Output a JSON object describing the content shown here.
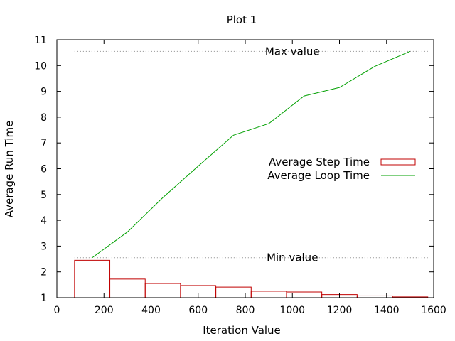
{
  "chart_data": {
    "type": "bar",
    "title": "Plot 1",
    "xlabel": "Iteration Value",
    "ylabel": "Average Run Time",
    "xlim": [
      0,
      1600
    ],
    "ylim": [
      1,
      11
    ],
    "xticks": [
      0,
      200,
      400,
      600,
      800,
      1000,
      1200,
      1400,
      1600
    ],
    "yticks": [
      1,
      2,
      3,
      4,
      5,
      6,
      7,
      8,
      9,
      10,
      11
    ],
    "grid": false,
    "legend_position": "right",
    "series": [
      {
        "name": "Average Step Time",
        "type": "bar",
        "color": "#c00000",
        "bars": [
          {
            "x0": 75,
            "x1": 225,
            "y": 2.45
          },
          {
            "x0": 225,
            "x1": 375,
            "y": 1.72
          },
          {
            "x0": 375,
            "x1": 525,
            "y": 1.55
          },
          {
            "x0": 525,
            "x1": 675,
            "y": 1.47
          },
          {
            "x0": 675,
            "x1": 825,
            "y": 1.41
          },
          {
            "x0": 825,
            "x1": 975,
            "y": 1.25
          },
          {
            "x0": 975,
            "x1": 1125,
            "y": 1.22
          },
          {
            "x0": 1125,
            "x1": 1275,
            "y": 1.12
          },
          {
            "x0": 1275,
            "x1": 1425,
            "y": 1.07
          },
          {
            "x0": 1425,
            "x1": 1575,
            "y": 1.03
          }
        ]
      },
      {
        "name": "Average Loop Time",
        "type": "line",
        "color": "#00a000",
        "x": [
          150,
          300,
          450,
          600,
          750,
          900,
          1050,
          1200,
          1350,
          1500
        ],
        "y": [
          2.55,
          3.55,
          4.88,
          6.1,
          7.3,
          7.75,
          8.82,
          9.15,
          9.97,
          10.55
        ]
      }
    ],
    "annotations": [
      {
        "label": "Max value",
        "y": 10.55,
        "x_start": 75,
        "x_end": 1575,
        "label_x": 1000
      },
      {
        "label": "Min value",
        "y": 2.55,
        "x_start": 75,
        "x_end": 1575,
        "label_x": 1000
      }
    ]
  }
}
